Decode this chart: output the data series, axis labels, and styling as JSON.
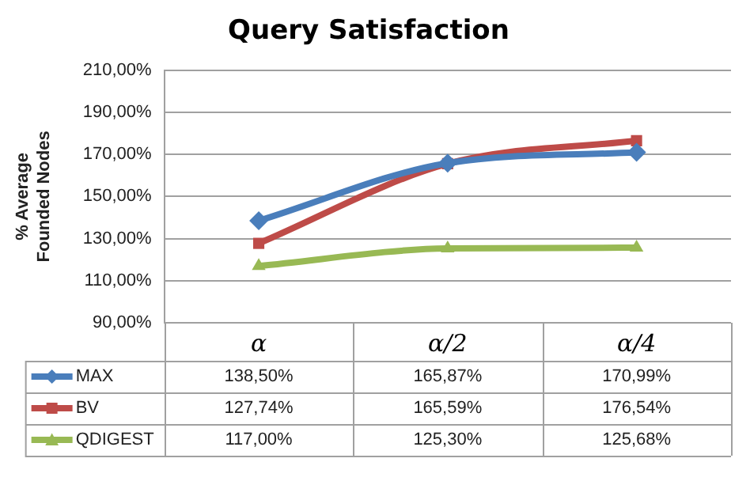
{
  "chart_data": {
    "type": "line",
    "title": "Query Satisfaction",
    "ylabel": "% Average Founded Nodes",
    "categories": [
      "α",
      "α/2",
      "α/4"
    ],
    "series": [
      {
        "name": "MAX",
        "color": "#4a7ebb",
        "marker": "diamond",
        "values": [
          138.5,
          165.87,
          170.99
        ],
        "value_labels": [
          "138,50%",
          "165,87%",
          "170,99%"
        ]
      },
      {
        "name": "BV",
        "color": "#be4b48",
        "marker": "square",
        "values": [
          127.74,
          165.59,
          176.54
        ],
        "value_labels": [
          "127,74%",
          "165,59%",
          "176,54%"
        ]
      },
      {
        "name": "QDIGEST",
        "color": "#98b954",
        "marker": "triangle",
        "values": [
          117.0,
          125.3,
          125.68
        ],
        "value_labels": [
          "117,00%",
          "125,30%",
          "125,68%"
        ]
      }
    ],
    "ylim": [
      90,
      210
    ],
    "yticks": [
      {
        "value": 90,
        "label": "90,00%"
      },
      {
        "value": 110,
        "label": "110,00%"
      },
      {
        "value": 130,
        "label": "130,00%"
      },
      {
        "value": 150,
        "label": "150,00%"
      },
      {
        "value": 170,
        "label": "170,00%"
      },
      {
        "value": 190,
        "label": "190,00%"
      },
      {
        "value": 210,
        "label": "210,00%"
      }
    ],
    "grid": "y",
    "legend": "bottom",
    "line_style": "solid"
  }
}
